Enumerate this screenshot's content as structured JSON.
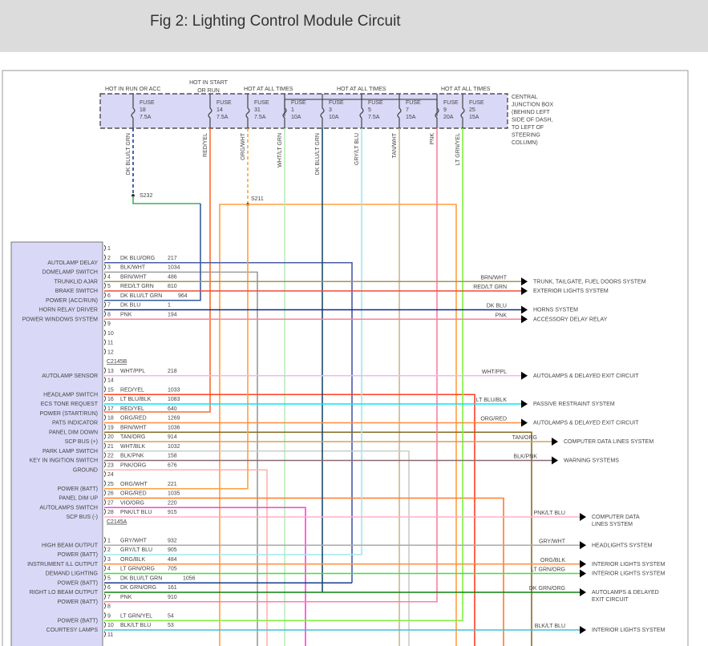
{
  "title": "Fig 2: Lighting Control Module Circuit",
  "junction_box": {
    "label_lines": [
      "CENTRAL",
      "JUNCTION BOX",
      "(BEHIND LEFT",
      "SIDE OF DASH,",
      "TO LEFT OF",
      "STEERING",
      "COLUMN)"
    ],
    "fill": "#d9d9f7",
    "power_labels": [
      "HOT IN RUN OR ACC",
      "HOT IN START",
      "OR RUN",
      "HOT AT ALL TIMES",
      "HOT AT ALL TIMES",
      "HOT AT ALL TIMES"
    ],
    "fuses": [
      {
        "word": "FUSE",
        "num": "18",
        "amp": "7.5A",
        "wire": "DK BLU/LT GRN",
        "color": "#1f3a93"
      },
      {
        "word": "FUSE",
        "num": "14",
        "amp": "7.5A",
        "wire": "RED/YEL",
        "color": "#ff6a30"
      },
      {
        "word": "FUSE",
        "num": "31",
        "amp": "7.5A",
        "wire": "ORG/WHT",
        "color": "#ffa040"
      },
      {
        "word": "FUSE",
        "num": "1",
        "amp": "10A",
        "wire": "WHT/LT GRN",
        "color": "#b8ecb8"
      },
      {
        "word": "FUSE",
        "num": "3",
        "amp": "10A",
        "wire": "DK BLU/LT GRN",
        "color": "#1a4a70"
      },
      {
        "word": "FUSE",
        "num": "5",
        "amp": "7.5A",
        "wire": "GRY/LT BLU",
        "color": "#a0dde8"
      },
      {
        "word": "FUSE",
        "num": "7",
        "amp": "15A",
        "wire": "TAN/WHT",
        "color": "#c8b890"
      },
      {
        "word": "FUSE",
        "num": "9",
        "amp": "20A",
        "wire": "PNK",
        "color": "#ff80a0"
      },
      {
        "word": "FUSE",
        "num": "25",
        "amp": "15A",
        "wire": "LT GRN/YEL",
        "color": "#40e020"
      }
    ],
    "splices": [
      "S232",
      "S211"
    ]
  },
  "module": {
    "fill": "#d9d9f7",
    "connector_b": "C2145B",
    "connector_a": "C2145A",
    "pins_b": [
      {
        "pin": "1",
        "label": "",
        "wire": "",
        "circuit": "",
        "color": ""
      },
      {
        "pin": "2",
        "label": "AUTOLAMP DELAY",
        "wire": "DK BLU/ORG",
        "circuit": "217",
        "color": "#4a5aa8"
      },
      {
        "pin": "3",
        "label": "DOMELAMP SWITCH",
        "wire": "BLK/WHT",
        "circuit": "1034",
        "color": "#999999"
      },
      {
        "pin": "4",
        "label": "TRUNKLID AJAR",
        "wire": "BRN/WHT",
        "circuit": "486",
        "color": "#a8925a"
      },
      {
        "pin": "5",
        "label": "BRAKE SWITCH",
        "wire": "RED/LT GRN",
        "circuit": "810",
        "color": "#f04a3a"
      },
      {
        "pin": "6",
        "label": "POWER (ACC/RUN)",
        "wire": "DK BLU/LT GRN",
        "circuit": "964",
        "color": "#3a5aa0"
      },
      {
        "pin": "7",
        "label": "HORN RELAY DRIVER",
        "wire": "DK BLU",
        "circuit": "1",
        "color": "#102a8a"
      },
      {
        "pin": "8",
        "label": "POWER WINDOWS SYSTEM",
        "wire": "PNK",
        "circuit": "194",
        "color": "#ff7f9f"
      },
      {
        "pin": "9",
        "label": "",
        "wire": "",
        "circuit": "",
        "color": ""
      },
      {
        "pin": "10",
        "label": "",
        "wire": "",
        "circuit": "",
        "color": ""
      },
      {
        "pin": "11",
        "label": "",
        "wire": "",
        "circuit": "",
        "color": ""
      },
      {
        "pin": "12",
        "label": "",
        "wire": "",
        "circuit": "",
        "color": ""
      },
      {
        "pin": "13",
        "label": "AUTOLAMP SENSOR",
        "wire": "WHT/PPL",
        "circuit": "218",
        "color": "#f0b8f0"
      },
      {
        "pin": "14",
        "label": "",
        "wire": "",
        "circuit": "",
        "color": ""
      },
      {
        "pin": "15",
        "label": "HEADLAMP SWITCH",
        "wire": "RED/YEL",
        "circuit": "1033",
        "color": "#ff4020"
      },
      {
        "pin": "16",
        "label": "ECS TONE REQUEST",
        "wire": "LT BLU/BLK",
        "circuit": "1083",
        "color": "#00e5ff"
      },
      {
        "pin": "17",
        "label": "POWER (START/RUN)",
        "wire": "RED/YEL",
        "circuit": "640",
        "color": "#ff3020"
      },
      {
        "pin": "18",
        "label": "PATS INDICATOR",
        "wire": "ORG/RED",
        "circuit": "1269",
        "color": "#ff8c40"
      },
      {
        "pin": "19",
        "label": "PANEL DIM DOWN",
        "wire": "BRN/WHT",
        "circuit": "1036",
        "color": "#8a6a20"
      },
      {
        "pin": "20",
        "label": "SCP BUS (+)",
        "wire": "TAN/ORG",
        "circuit": "914",
        "color": "#d0a060"
      },
      {
        "pin": "21",
        "label": "PARK LAMP SWITCH",
        "wire": "WHT/BLK",
        "circuit": "1032",
        "color": "#cccccc"
      },
      {
        "pin": "22",
        "label": "KEY IN INGITION SWITCH",
        "wire": "BLK/PNK",
        "circuit": "158",
        "color": "#8a6a70"
      },
      {
        "pin": "23",
        "label": "GROUND",
        "wire": "PNK/ORG",
        "circuit": "676",
        "color": "#ffb0b0"
      },
      {
        "pin": "24",
        "label": "",
        "wire": "",
        "circuit": "",
        "color": ""
      },
      {
        "pin": "25",
        "label": "POWER (BATT)",
        "wire": "ORG/WHT",
        "circuit": "221",
        "color": "#ffa040"
      },
      {
        "pin": "26",
        "label": "PANEL DIM UP",
        "wire": "ORG/RED",
        "circuit": "1035",
        "color": "#ff7a30"
      },
      {
        "pin": "27",
        "label": "AUTOLAMPS SWITCH",
        "wire": "VIO/ORG",
        "circuit": "220",
        "color": "#ff40d0"
      },
      {
        "pin": "28",
        "label": "SCP BUS (-)",
        "wire": "PNK/LT BLU",
        "circuit": "915",
        "color": "#ffb0c8"
      }
    ],
    "pins_a": [
      {
        "pin": "1",
        "label": "HIGH BEAM OUTPUT",
        "wire": "GRY/WHT",
        "circuit": "932",
        "color": "#aaaaaa"
      },
      {
        "pin": "2",
        "label": "POWER (BATT)",
        "wire": "GRY/LT BLU",
        "circuit": "905",
        "color": "#a0e8f0"
      },
      {
        "pin": "3",
        "label": "INSTRUMENT ILL OUTPUT",
        "wire": "ORG/BLK",
        "circuit": "484",
        "color": "#ff9040"
      },
      {
        "pin": "4",
        "label": "DEMAND LIGHTING",
        "wire": "LT GRN/ORG",
        "circuit": "705",
        "color": "#40e040"
      },
      {
        "pin": "5",
        "label": "POWER (BATT)",
        "wire": "DK BLU/LT GRN",
        "circuit": "1056",
        "color": "#1a3a90"
      },
      {
        "pin": "6",
        "label": "RIGHT LO BEAM OUTPUT",
        "wire": "DK GRN/ORG",
        "circuit": "161",
        "color": "#108010"
      },
      {
        "pin": "7",
        "label": "POWER (BATT)",
        "wire": "PNK",
        "circuit": "910",
        "color": "#ff80a0"
      },
      {
        "pin": "8",
        "label": "",
        "wire": "",
        "circuit": "",
        "color": ""
      },
      {
        "pin": "9",
        "label": "POWER (BATT)",
        "wire": "LT GRN/YEL",
        "circuit": "54",
        "color": "#80f040"
      },
      {
        "pin": "10",
        "label": "COURTESY LAMPS",
        "wire": "BLK/LT BLU",
        "circuit": "53",
        "color": "#40c0d0"
      },
      {
        "pin": "11",
        "label": "",
        "wire": "",
        "circuit": "",
        "color": ""
      }
    ]
  },
  "outputs": [
    {
      "from": "b4",
      "wire": "BRN/WHT",
      "dest": [
        "TRUNK, TAILGATE, FUEL DOORS SYSTEM"
      ]
    },
    {
      "from": "b5",
      "wire": "RED/LT GRN",
      "dest": [
        "EXTERIOR LIGHTS SYSTEM"
      ]
    },
    {
      "from": "b7",
      "wire": "DK BLU",
      "dest": [
        "HORNS SYSTEM"
      ]
    },
    {
      "from": "b8",
      "wire": "PNK",
      "dest": [
        "ACCESSORY DELAY RELAY"
      ]
    },
    {
      "from": "b13",
      "wire": "WHT/PPL",
      "dest": [
        "AUTOLAMPS & DELAYED EXIT CIRCUIT"
      ]
    },
    {
      "from": "b16",
      "wire": "LT BLU/BLK",
      "dest": [
        "PASSIVE RESTRAINT SYSTEM"
      ]
    },
    {
      "from": "b18",
      "wire": "ORG/RED",
      "dest": [
        "AUTOLAMPS & DELAYED EXIT CIRCUIT"
      ]
    },
    {
      "from": "b20",
      "wire": "TAN/ORG",
      "dest": [
        "COMPUTER DATA LINES SYSTEM"
      ]
    },
    {
      "from": "b22",
      "wire": "BLK/PNK",
      "dest": [
        "WARNING SYSTEMS"
      ]
    },
    {
      "from": "b28",
      "wire": "PNK/LT BLU",
      "dest": [
        "COMPUTER DATA",
        "LINES SYSTEM"
      ]
    },
    {
      "from": "a1",
      "wire": "GRY/WHT",
      "dest": [
        "HEADLIGHTS SYSTEM"
      ]
    },
    {
      "from": "a3",
      "wire": "ORG/BLK",
      "dest": [
        "INTERIOR LIGHTS SYSTEM"
      ]
    },
    {
      "from": "a4",
      "wire": "LT GRN/ORG",
      "dest": [
        "INTERIOR LIGHTS SYSTEM"
      ]
    },
    {
      "from": "a6",
      "wire": "DK GRN/ORG",
      "dest": [
        "AUTOLAMPS & DELAYED",
        "EXIT CIRCUIT"
      ]
    },
    {
      "from": "a10",
      "wire": "BLK/LT BLU",
      "dest": [
        "INTERIOR LIGHTS SYSTEM"
      ]
    }
  ]
}
